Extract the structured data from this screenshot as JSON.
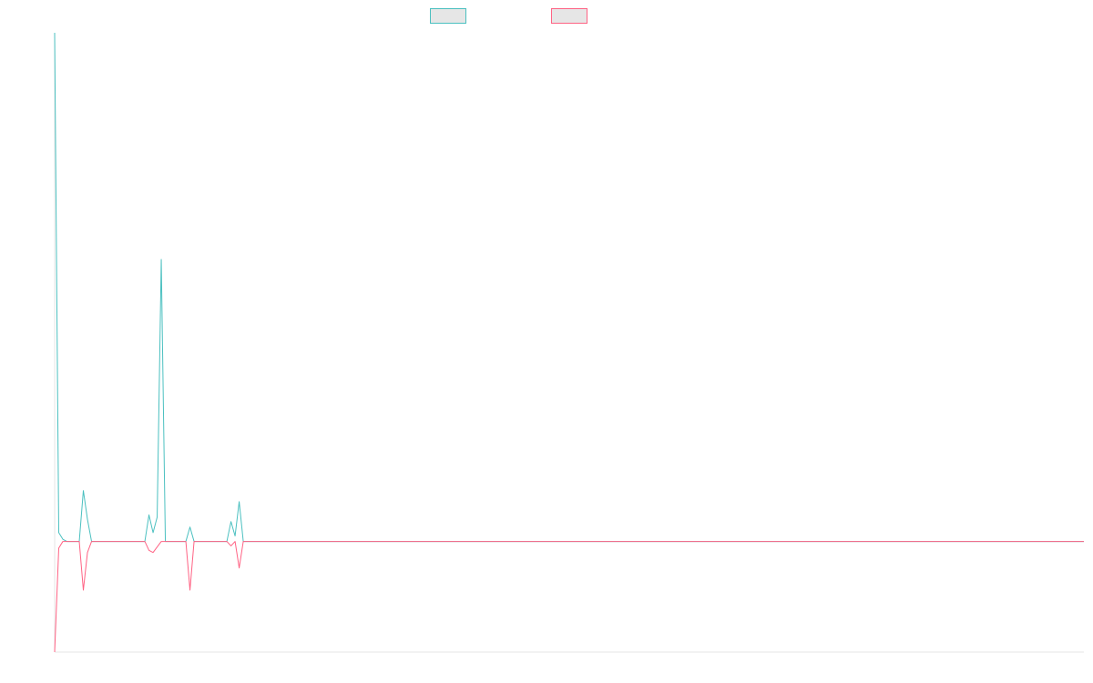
{
  "chart_data": {
    "type": "line",
    "title": "",
    "xlabel": "",
    "ylabel": "",
    "ylim": [
      -1.0,
      4.6
    ],
    "xlim": [
      0,
      251
    ],
    "grid": false,
    "legend": {
      "placement": "top-center",
      "show_labels": false
    },
    "baseline": 0,
    "series": [
      {
        "color": "#4bc0c0",
        "fill": "#e6e6e6",
        "points": [
          [
            0,
            4.6
          ],
          [
            1,
            0.08
          ],
          [
            2,
            0.02
          ],
          [
            3,
            0
          ],
          [
            6,
            0
          ],
          [
            7,
            0.46
          ],
          [
            8,
            0.2
          ],
          [
            9,
            0
          ],
          [
            22,
            0
          ],
          [
            23,
            0.24
          ],
          [
            24,
            0.08
          ],
          [
            25,
            0.22
          ],
          [
            26,
            2.55
          ],
          [
            27,
            0
          ],
          [
            32,
            0
          ],
          [
            33,
            0.13
          ],
          [
            34,
            0
          ],
          [
            42,
            0
          ],
          [
            43,
            0.18
          ],
          [
            44,
            0.05
          ],
          [
            45,
            0.36
          ],
          [
            46,
            0
          ],
          [
            251,
            0
          ]
        ]
      },
      {
        "color": "#ff6384",
        "fill": "#e6e6e6",
        "points": [
          [
            0,
            -1.0
          ],
          [
            1,
            -0.06
          ],
          [
            2,
            0
          ],
          [
            6,
            0
          ],
          [
            7,
            -0.44
          ],
          [
            8,
            -0.1
          ],
          [
            9,
            0
          ],
          [
            22,
            0
          ],
          [
            23,
            -0.08
          ],
          [
            24,
            -0.1
          ],
          [
            26,
            0
          ],
          [
            27,
            0
          ],
          [
            32,
            0
          ],
          [
            33,
            -0.44
          ],
          [
            34,
            0
          ],
          [
            42,
            0
          ],
          [
            43,
            -0.04
          ],
          [
            44,
            0
          ],
          [
            45,
            -0.24
          ],
          [
            46,
            0
          ],
          [
            251,
            0
          ]
        ]
      }
    ]
  }
}
